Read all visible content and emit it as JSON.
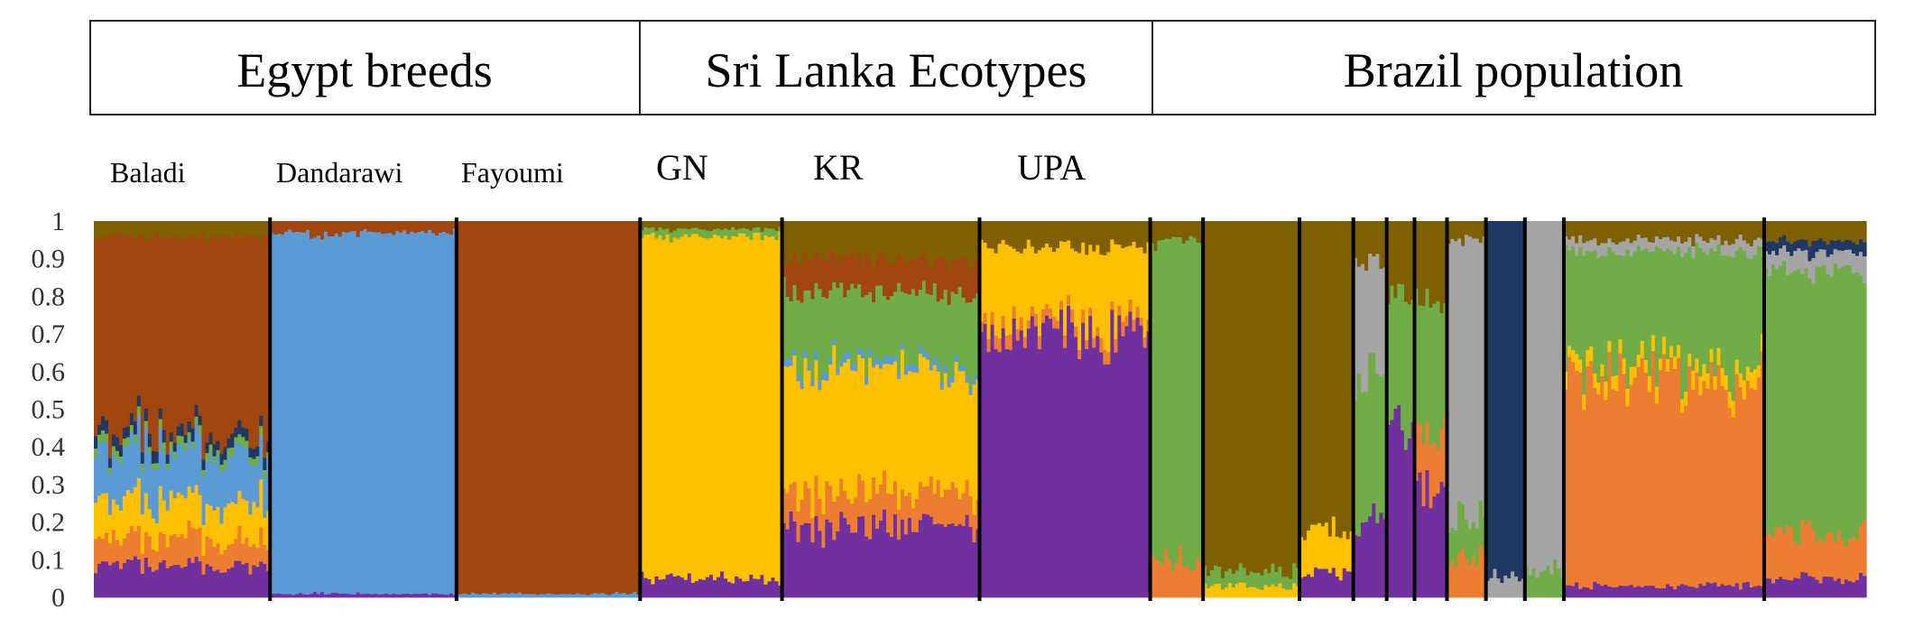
{
  "chart_data": {
    "type": "bar",
    "subtype": "stacked-admixture",
    "title": "",
    "xlabel": "",
    "ylabel": "",
    "ylim": [
      0,
      1
    ],
    "yticks": [
      "0",
      "0.1",
      "0.2",
      "0.3",
      "0.4",
      "0.5",
      "0.6",
      "0.7",
      "0.8",
      "0.9",
      "1"
    ],
    "grid": false,
    "legend": "none",
    "groups": [
      {
        "label": "Egypt breeds",
        "populations": [
          "Baladi",
          "Dandarawi",
          "Fayoumi"
        ]
      },
      {
        "label": "Sri Lanka Ecotypes",
        "populations": [
          "GN",
          "KR",
          "UPA"
        ]
      },
      {
        "label": "Brazil population",
        "populations": [
          "",
          "",
          "",
          "",
          "",
          "",
          "",
          "",
          "",
          "",
          ""
        ]
      }
    ],
    "population_labels": [
      "Baladi",
      "Dandarawi",
      "Fayoumi",
      "GN",
      "KR",
      "UPA"
    ],
    "cluster_colors": {
      "brown": "#A0460E",
      "blue": "#5B9BD5",
      "yellow": "#FFC000",
      "orange": "#ED7D31",
      "purple": "#7030A0",
      "green": "#70AD47",
      "olive": "#7F6000",
      "gray": "#A5A5A5",
      "navy": "#203864"
    },
    "populations": [
      {
        "name": "Baladi",
        "group": "Egypt breeds",
        "share": 0.095,
        "proportions": {
          "purple": 0.08,
          "orange": 0.07,
          "yellow": 0.1,
          "blue": 0.13,
          "green": 0.02,
          "navy": 0.03,
          "brown": 0.53,
          "olive": 0.04
        }
      },
      {
        "name": "Dandarawi",
        "group": "Egypt breeds",
        "share": 0.1005,
        "proportions": {
          "purple": 0.01,
          "blue": 0.96,
          "brown": 0.03
        }
      },
      {
        "name": "Fayoumi",
        "group": "Egypt breeds",
        "share": 0.099,
        "proportions": {
          "brown": 0.99,
          "blue": 0.01
        }
      },
      {
        "name": "GN",
        "group": "Sri Lanka Ecotypes",
        "share": 0.0765,
        "proportions": {
          "purple": 0.05,
          "yellow": 0.91,
          "green": 0.02,
          "olive": 0.02
        }
      },
      {
        "name": "KR",
        "group": "Sri Lanka Ecotypes",
        "share": 0.1065,
        "proportions": {
          "purple": 0.19,
          "orange": 0.09,
          "yellow": 0.32,
          "blue": 0.02,
          "green": 0.19,
          "brown": 0.09,
          "olive": 0.1
        }
      },
      {
        "name": "UPA",
        "group": "Sri Lanka Ecotypes",
        "share": 0.092,
        "proportions": {
          "purple": 0.7,
          "yellow": 0.2,
          "orange": 0.03,
          "olive": 0.07
        }
      },
      {
        "name": "",
        "group": "Brazil population",
        "share": 0.0285,
        "proportions": {
          "orange": 0.1,
          "green": 0.85,
          "olive": 0.05
        }
      },
      {
        "name": "",
        "group": "Brazil population",
        "share": 0.052,
        "proportions": {
          "olive": 0.93,
          "yellow": 0.03,
          "green": 0.04
        }
      },
      {
        "name": "",
        "group": "Brazil population",
        "share": 0.029,
        "proportions": {
          "purple": 0.06,
          "yellow": 0.1,
          "olive": 0.84
        }
      },
      {
        "name": "",
        "group": "Brazil population",
        "share": 0.018,
        "proportions": {
          "purple": 0.2,
          "green": 0.4,
          "gray": 0.3,
          "olive": 0.1
        }
      },
      {
        "name": "",
        "group": "Brazil population",
        "share": 0.015,
        "proportions": {
          "purple": 0.45,
          "green": 0.35,
          "olive": 0.2
        }
      },
      {
        "name": "",
        "group": "Brazil population",
        "share": 0.0175,
        "proportions": {
          "purple": 0.3,
          "green": 0.35,
          "orange": 0.15,
          "olive": 0.2
        }
      },
      {
        "name": "",
        "group": "Brazil population",
        "share": 0.021,
        "proportions": {
          "orange": 0.1,
          "gray": 0.75,
          "green": 0.1,
          "olive": 0.05
        }
      },
      {
        "name": "",
        "group": "Brazil population",
        "share": 0.021,
        "proportions": {
          "navy": 0.95,
          "gray": 0.05
        }
      },
      {
        "name": "",
        "group": "Brazil population",
        "share": 0.021,
        "proportions": {
          "gray": 0.92,
          "green": 0.08
        }
      },
      {
        "name": "",
        "group": "Brazil population",
        "share": 0.108,
        "proportions": {
          "purple": 0.03,
          "orange": 0.55,
          "yellow": 0.04,
          "green": 0.3,
          "gray": 0.03,
          "olive": 0.05
        }
      },
      {
        "name": "",
        "group": "Brazil population",
        "share": 0.055,
        "proportions": {
          "orange": 0.12,
          "purple": 0.05,
          "green": 0.7,
          "gray": 0.05,
          "navy": 0.03,
          "olive": 0.05
        }
      }
    ]
  }
}
